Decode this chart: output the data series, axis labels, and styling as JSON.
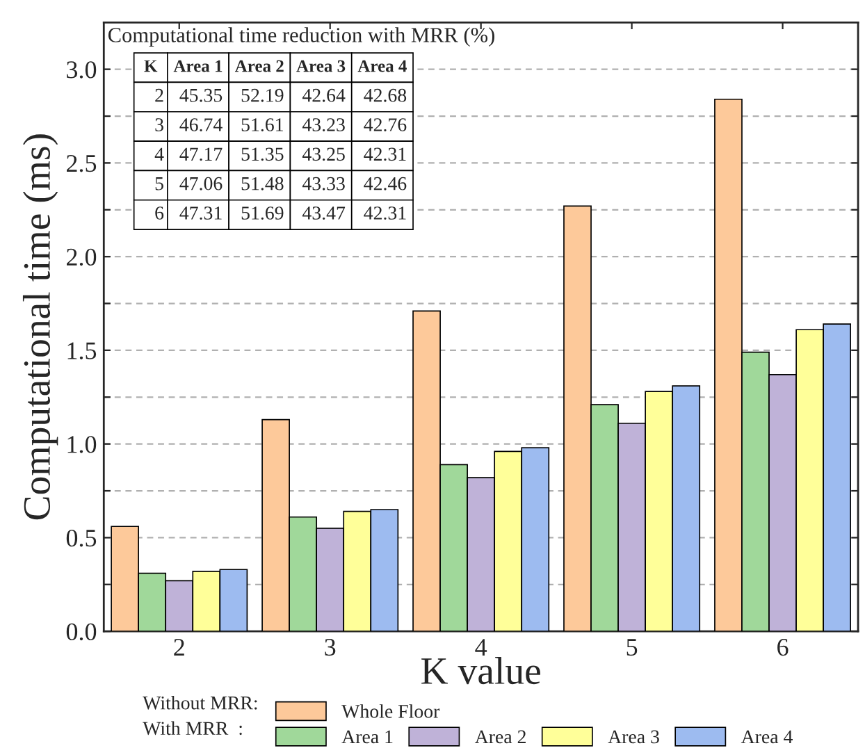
{
  "chart_data": {
    "type": "bar",
    "xlabel": "K value",
    "ylabel": "Computational time (ms)",
    "categories": [
      "2",
      "3",
      "4",
      "5",
      "6"
    ],
    "series": [
      {
        "name": "Whole Floor",
        "color": "#fdc99a",
        "values": [
          0.56,
          1.13,
          1.71,
          2.27,
          2.84
        ]
      },
      {
        "name": "Area 1",
        "color": "#a0d89a",
        "values": [
          0.31,
          0.61,
          0.89,
          1.21,
          1.49
        ]
      },
      {
        "name": "Area 2",
        "color": "#bfb2d8",
        "values": [
          0.27,
          0.55,
          0.82,
          1.11,
          1.37
        ]
      },
      {
        "name": "Area 3",
        "color": "#ffff99",
        "values": [
          0.32,
          0.64,
          0.96,
          1.28,
          1.61
        ]
      },
      {
        "name": "Area 4",
        "color": "#9dbbf0",
        "values": [
          0.33,
          0.65,
          0.98,
          1.31,
          1.64
        ]
      }
    ],
    "ylim": [
      0,
      3.25
    ],
    "yticks": [
      {
        "value": 0,
        "label": "0.0"
      },
      {
        "value": 0.25,
        "label": null
      },
      {
        "value": 0.5,
        "label": "0.5"
      },
      {
        "value": 0.75,
        "label": null
      },
      {
        "value": 1,
        "label": "1.0"
      },
      {
        "value": 1.25,
        "label": null
      },
      {
        "value": 1.5,
        "label": "1.5"
      },
      {
        "value": 1.75,
        "label": null
      },
      {
        "value": 2,
        "label": "2.0"
      },
      {
        "value": 2.25,
        "label": null
      },
      {
        "value": 2.5,
        "label": "2.5"
      },
      {
        "value": 2.75,
        "label": null
      },
      {
        "value": 3,
        "label": "3.0"
      }
    ],
    "grid": "y",
    "legend": "bottom",
    "annotations": [
      "Computational time reduction with MRR (%)",
      "K",
      "Area 1",
      "Area 2",
      "Area 3",
      "Area 4",
      "2",
      "45.35",
      "52.19",
      "42.64",
      "42.68",
      "3",
      "46.74",
      "51.61",
      "43.23",
      "42.76",
      "4",
      "47.17",
      "51.35",
      "43.25",
      "42.31",
      "5",
      "47.06",
      "51.48",
      "43.33",
      "42.46",
      "6",
      "47.31",
      "51.69",
      "43.47",
      "42.31",
      "Without MRR:",
      "With MRR  :"
    ]
  }
}
